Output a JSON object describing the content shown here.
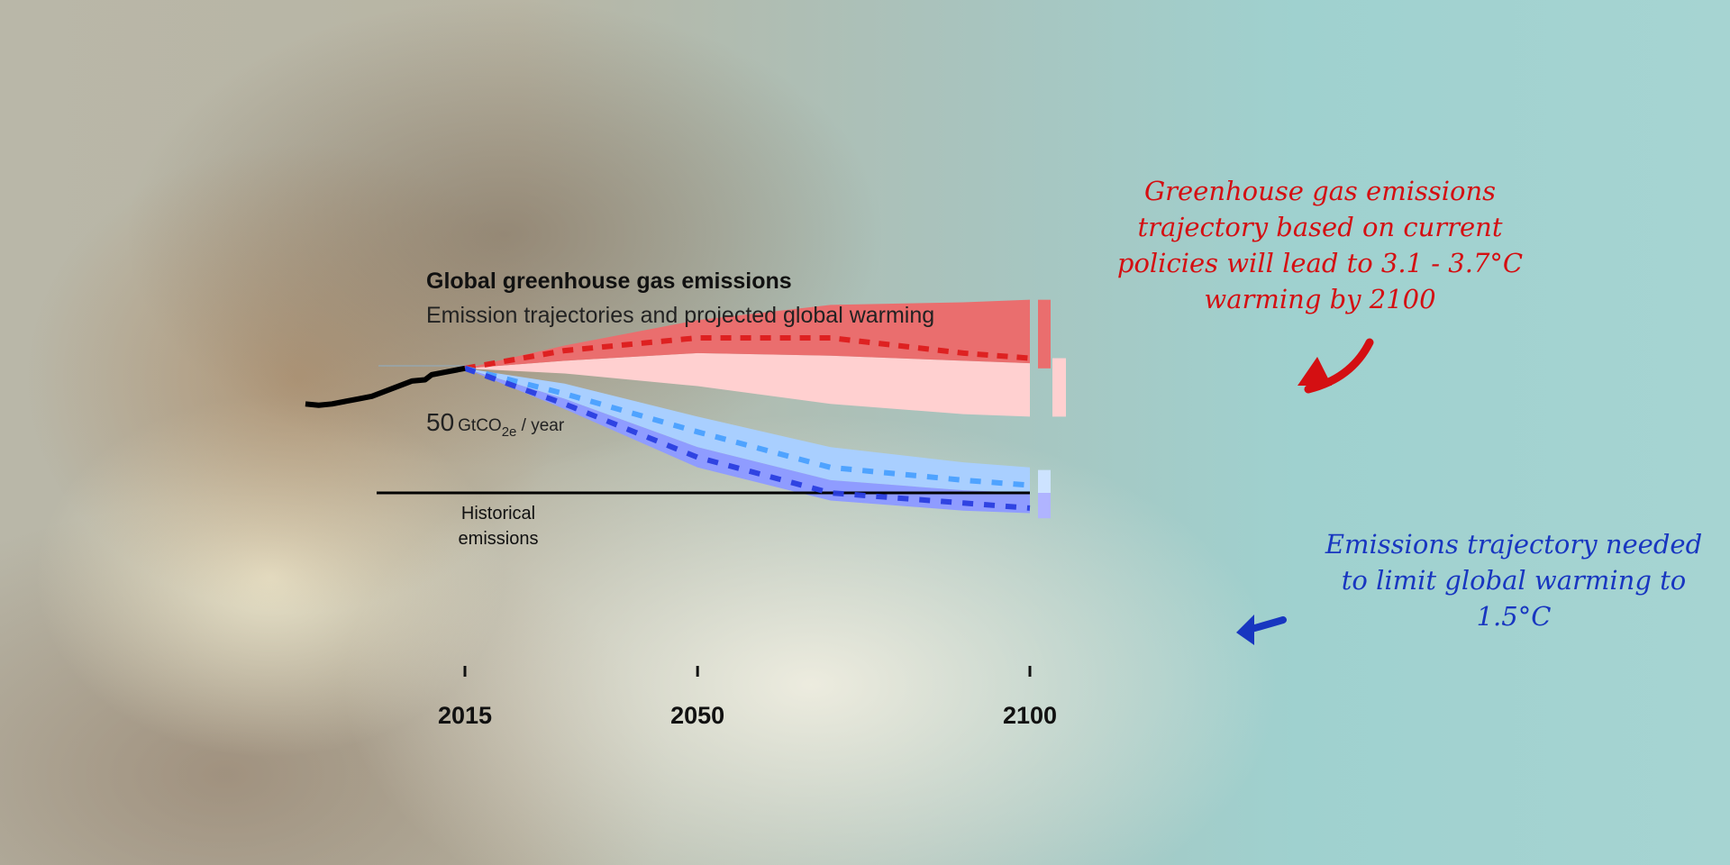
{
  "header": {
    "title": "Global greenhouse gas emissions",
    "subtitle": "Emission trajectories and projected global warming"
  },
  "annotations": {
    "current_policies": "Greenhouse gas emissions trajectory based on current policies will lead to 3.1 - 3.7°C warming by 2100",
    "target": "Emissions trajectory needed to limit global warming to 1.5°C"
  },
  "colors": {
    "red_dark": "#ea6e6e",
    "red_light": "#ffd0d0",
    "red_dash": "#dd1c1c",
    "blue_light": "#a9cfff",
    "blue_dark": "#8f9cff",
    "blue_dash_light": "#4aa0ff",
    "blue_dash_dark": "#2a3ee0",
    "historical": "#000000",
    "annotation_red": "#d40f12",
    "annotation_blue": "#1836c0"
  },
  "chart_data": {
    "type": "area",
    "title": "Global greenhouse gas emissions",
    "subtitle": "Emission trajectories and projected global warming",
    "y_reference_label": {
      "value": "50",
      "unit": "GtCO",
      "unit_sub": "2e",
      "unit_suffix": " / year"
    },
    "historical_label": [
      "Historical",
      "emissions"
    ],
    "x_ticks": [
      "2015",
      "2050",
      "2100"
    ],
    "xlim": [
      1991,
      2100
    ],
    "ylim": [
      -10,
      80
    ],
    "historical": {
      "x": [
        1991,
        1993,
        1995,
        1997,
        1999,
        2001,
        2003,
        2005,
        2007,
        2009,
        2010,
        2012,
        2014,
        2015
      ],
      "y": [
        35,
        34.5,
        35,
        36,
        37,
        38,
        40,
        42,
        44,
        44.5,
        46.5,
        47.5,
        48.5,
        49
      ]
    },
    "x": [
      2015,
      2030,
      2050,
      2070,
      2090,
      2100
    ],
    "current_policies": {
      "upper_band": {
        "upper": [
          49,
          58,
          68,
          74,
          75,
          76
        ],
        "lower": [
          49,
          52,
          55,
          54,
          52,
          51
        ]
      },
      "lower_band": {
        "upper": [
          49,
          52,
          55,
          54,
          52,
          51
        ],
        "lower": [
          49,
          47,
          42,
          35,
          31,
          30
        ]
      },
      "median": [
        49,
        56,
        61,
        61,
        55,
        53
      ]
    },
    "pathway_1_5C": {
      "light_band": {
        "upper": [
          49,
          43,
          30,
          18,
          12,
          10
        ],
        "lower": [
          49,
          37,
          18,
          5,
          1,
          0
        ]
      },
      "dark_band": {
        "upper": [
          49,
          37,
          18,
          5,
          1,
          0
        ],
        "lower": [
          49,
          33,
          10,
          -3,
          -7,
          -8
        ]
      },
      "median_light": [
        49,
        39,
        24,
        10,
        5,
        3
      ],
      "median_dark": [
        49,
        35,
        14,
        0,
        -4,
        -6
      ]
    },
    "range_bars_2100": [
      {
        "from": 49,
        "to": 76,
        "color": "#ea6e6e"
      },
      {
        "from": 30,
        "to": 53,
        "color": "#ffd0d0"
      },
      {
        "from": 0,
        "to": 9,
        "color": "#cde3ff"
      },
      {
        "from": -10,
        "to": 0,
        "color": "#b0b4ff"
      }
    ],
    "grid": false,
    "legend": "none"
  }
}
